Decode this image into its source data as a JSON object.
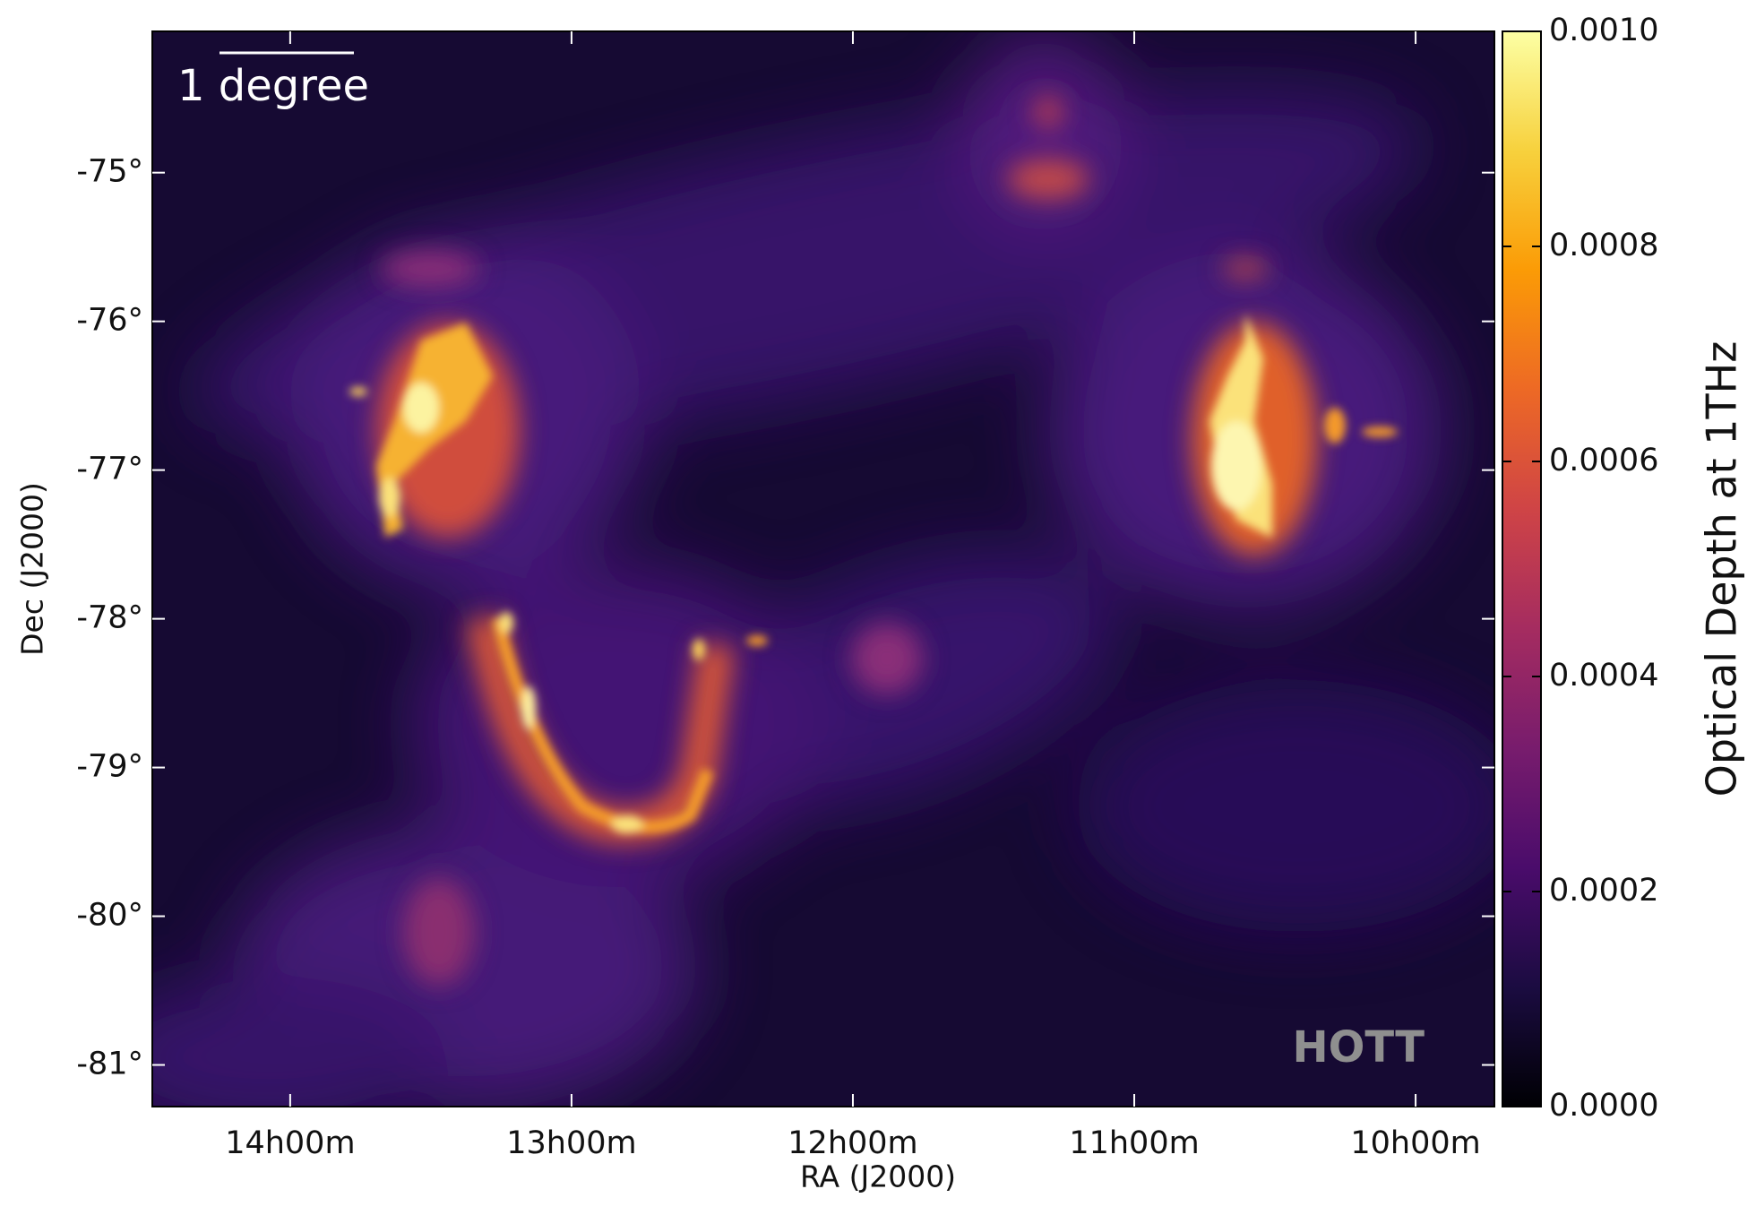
{
  "chart_data": {
    "type": "image",
    "x_label": "RA (J2000)",
    "y_label": "Dec (J2000)",
    "colorbar_label": "Optical Depth at 1THz",
    "annotations": [
      "1 degree",
      "HOTT"
    ],
    "xlim": [
      14.49,
      9.72
    ],
    "xticks": [
      {
        "value": 14,
        "label": "14h00m"
      },
      {
        "value": 13,
        "label": "13h00m"
      },
      {
        "value": 12,
        "label": "12h00m"
      },
      {
        "value": 11,
        "label": "11h00m"
      },
      {
        "value": 10,
        "label": "10h00m"
      }
    ],
    "ylim": [
      -81.28,
      -74.05
    ],
    "yticks": [
      {
        "value": -75,
        "label": "-75°"
      },
      {
        "value": -76,
        "label": "-76°"
      },
      {
        "value": -77,
        "label": "-77°"
      },
      {
        "value": -78,
        "label": "-78°"
      },
      {
        "value": -79,
        "label": "-79°"
      },
      {
        "value": -80,
        "label": "-80°"
      },
      {
        "value": -81,
        "label": "-81°"
      }
    ],
    "colormap": "inferno",
    "clim": [
      0,
      0.001
    ],
    "cticks": [
      {
        "value": 0,
        "label": "0.0000"
      },
      {
        "value": 0.0002,
        "label": "0.0002"
      },
      {
        "value": 0.0004,
        "label": "0.0004"
      },
      {
        "value": 0.0006,
        "label": "0.0006"
      },
      {
        "value": 0.0008,
        "label": "0.0008"
      },
      {
        "value": 0.001,
        "label": "0.0010"
      }
    ]
  }
}
